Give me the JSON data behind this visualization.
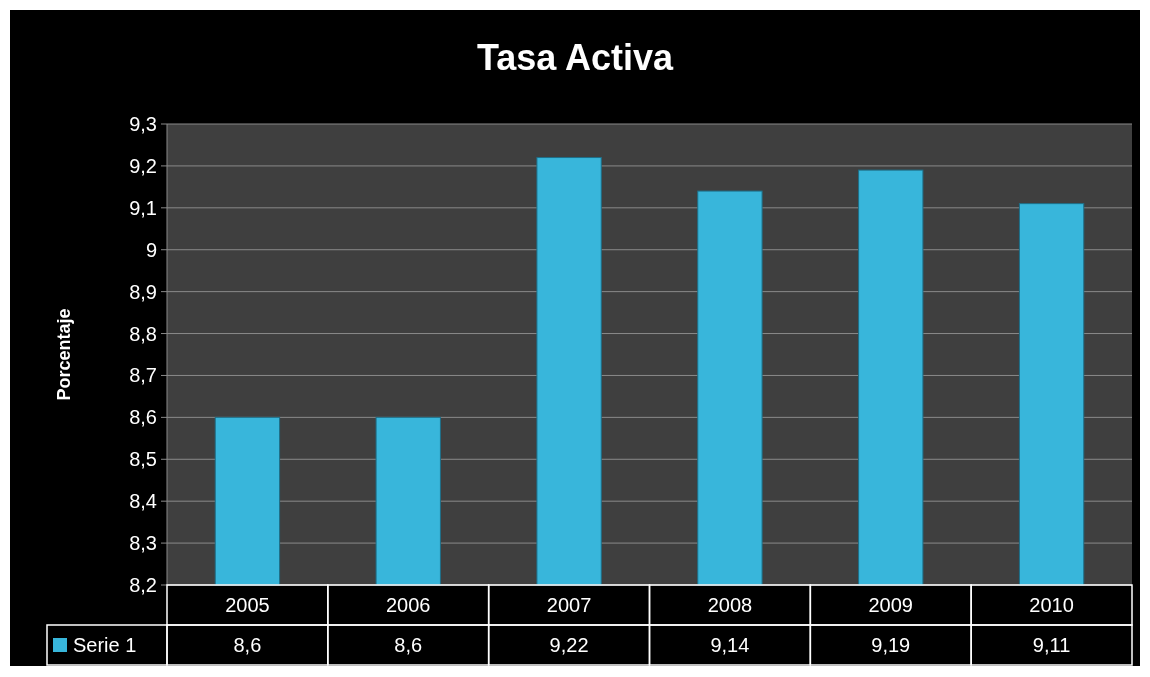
{
  "chart_data": {
    "type": "bar",
    "title": "Tasa Activa",
    "ylabel": "Porcentaje",
    "categories": [
      "2005",
      "2006",
      "2007",
      "2008",
      "2009",
      "2010"
    ],
    "series": [
      {
        "name": "Serie 1",
        "color": "#38b6db",
        "values": [
          8.6,
          8.6,
          9.22,
          9.14,
          9.19,
          9.11
        ],
        "value_labels": [
          "8,6",
          "8,6",
          "9,22",
          "9,14",
          "9,19",
          "9,11"
        ]
      }
    ],
    "ylim": [
      8.2,
      9.3
    ],
    "yticks": [
      {
        "value": 8.2,
        "label": "8,2"
      },
      {
        "value": 8.3,
        "label": "8,3"
      },
      {
        "value": 8.4,
        "label": "8,4"
      },
      {
        "value": 8.5,
        "label": "8,5"
      },
      {
        "value": 8.6,
        "label": "8,6"
      },
      {
        "value": 8.7,
        "label": "8,7"
      },
      {
        "value": 8.8,
        "label": "8,8"
      },
      {
        "value": 8.9,
        "label": "8,9"
      },
      9,
      {
        "value": 9.1,
        "label": "9,1"
      },
      {
        "value": 9.2,
        "label": "9,2"
      },
      {
        "value": 9.3,
        "label": "9,3"
      }
    ],
    "grid": "y",
    "legend": "bottom left"
  }
}
